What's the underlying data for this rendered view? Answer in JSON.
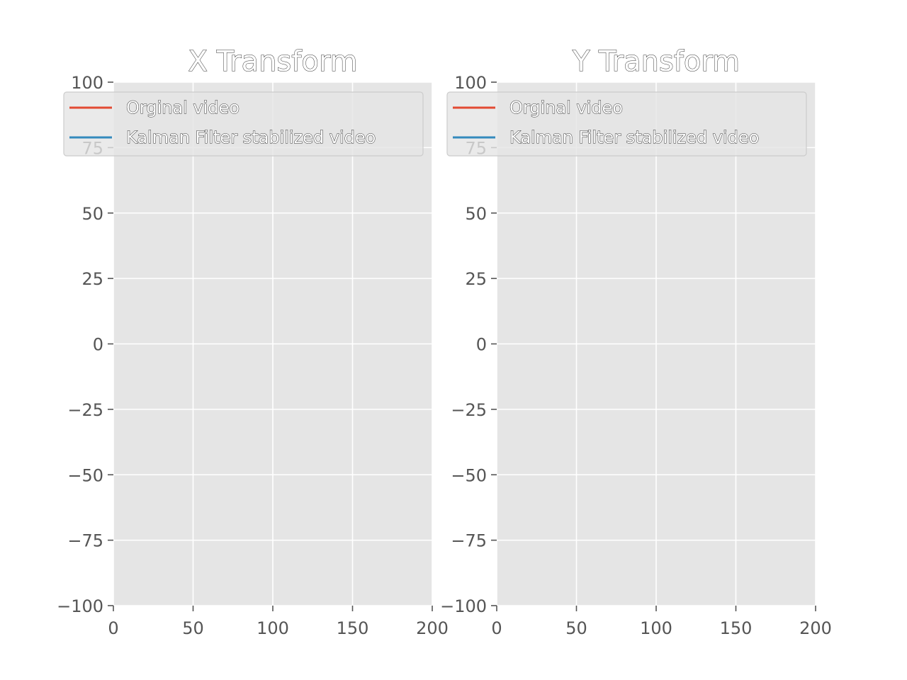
{
  "chart_data": [
    {
      "type": "line",
      "title": "X Transform",
      "xlabel": "",
      "ylabel": "",
      "xlim": [
        0,
        200
      ],
      "ylim": [
        -100,
        100
      ],
      "xticks": [
        0,
        50,
        100,
        150,
        200
      ],
      "yticks": [
        -100,
        -75,
        -50,
        -25,
        0,
        25,
        50,
        75,
        100
      ],
      "xtick_labels": [
        "0",
        "50",
        "100",
        "150",
        "200"
      ],
      "ytick_labels": [
        "−100",
        "−75",
        "−50",
        "−25",
        "0",
        "25",
        "50",
        "75",
        "100"
      ],
      "grid": true,
      "legend_position": "top",
      "series": [
        {
          "name": "Orginal video",
          "color": "#E24A33",
          "values": []
        },
        {
          "name": "Kalman Filter stabilized video",
          "color": "#348ABD",
          "values": []
        }
      ]
    },
    {
      "type": "line",
      "title": "Y Transform",
      "xlabel": "",
      "ylabel": "",
      "xlim": [
        0,
        200
      ],
      "ylim": [
        -100,
        100
      ],
      "xticks": [
        0,
        50,
        100,
        150,
        200
      ],
      "yticks": [
        -100,
        -75,
        -50,
        -25,
        0,
        25,
        50,
        75,
        100
      ],
      "xtick_labels": [
        "0",
        "50",
        "100",
        "150",
        "200"
      ],
      "ytick_labels": [
        "−100",
        "−75",
        "−50",
        "−25",
        "0",
        "25",
        "50",
        "75",
        "100"
      ],
      "grid": true,
      "legend_position": "top",
      "series": [
        {
          "name": "Orginal video",
          "color": "#E24A33",
          "values": []
        },
        {
          "name": "Kalman Filter stabilized video",
          "color": "#348ABD",
          "values": []
        }
      ]
    }
  ],
  "style": {
    "axes_background": "#E5E5E5",
    "grid_color": "#ffffff",
    "tick_color": "#555555"
  }
}
